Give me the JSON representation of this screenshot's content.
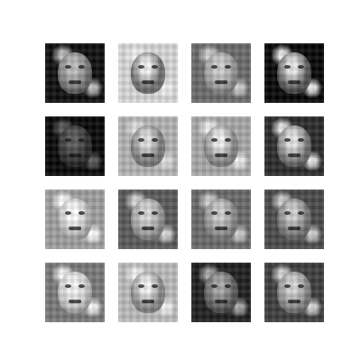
{
  "image": {
    "description_kind": "grid of generated grayscale face images",
    "rows": 4,
    "columns": 4,
    "tiles": [
      {
        "bg": "#0d0d0d",
        "face": "#7a7a7a",
        "hl": "#bdbdbd"
      },
      {
        "bg": "#d9d9d9",
        "face": "#6e6e6e",
        "hl": "#f2f2f2"
      },
      {
        "bg": "#6b6b6b",
        "face": "#9a9a9a",
        "hl": "#cfcfcf"
      },
      {
        "bg": "#050505",
        "face": "#5d5d5d",
        "hl": "#e8e8e8"
      },
      {
        "bg": "#060606",
        "face": "#2e2e2e",
        "hl": "#5a5a5a"
      },
      {
        "bg": "#b5b5b5",
        "face": "#7d7d7d",
        "hl": "#e0e0e0"
      },
      {
        "bg": "#a9a9a9",
        "face": "#8a8a8a",
        "hl": "#f0f0f0"
      },
      {
        "bg": "#2a2a2a",
        "face": "#7a7a7a",
        "hl": "#e6e6e6"
      },
      {
        "bg": "#a0a0a0",
        "face": "#bcbcbc",
        "hl": "#ffffff"
      },
      {
        "bg": "#5a5a5a",
        "face": "#9c9c9c",
        "hl": "#d8d8d8"
      },
      {
        "bg": "#6a6a6a",
        "face": "#8e8e8e",
        "hl": "#cfcfcf"
      },
      {
        "bg": "#4a4a4a",
        "face": "#7a7a7a",
        "hl": "#d0d0d0"
      },
      {
        "bg": "#7a7a7a",
        "face": "#c8c8c8",
        "hl": "#f5f5f5"
      },
      {
        "bg": "#bdbdbd",
        "face": "#8a8a8a",
        "hl": "#f3f3f3"
      },
      {
        "bg": "#1f1f1f",
        "face": "#5f5f5f",
        "hl": "#a8a8a8"
      },
      {
        "bg": "#3d3d3d",
        "face": "#8b8b8b",
        "hl": "#d6d6d6"
      }
    ]
  }
}
